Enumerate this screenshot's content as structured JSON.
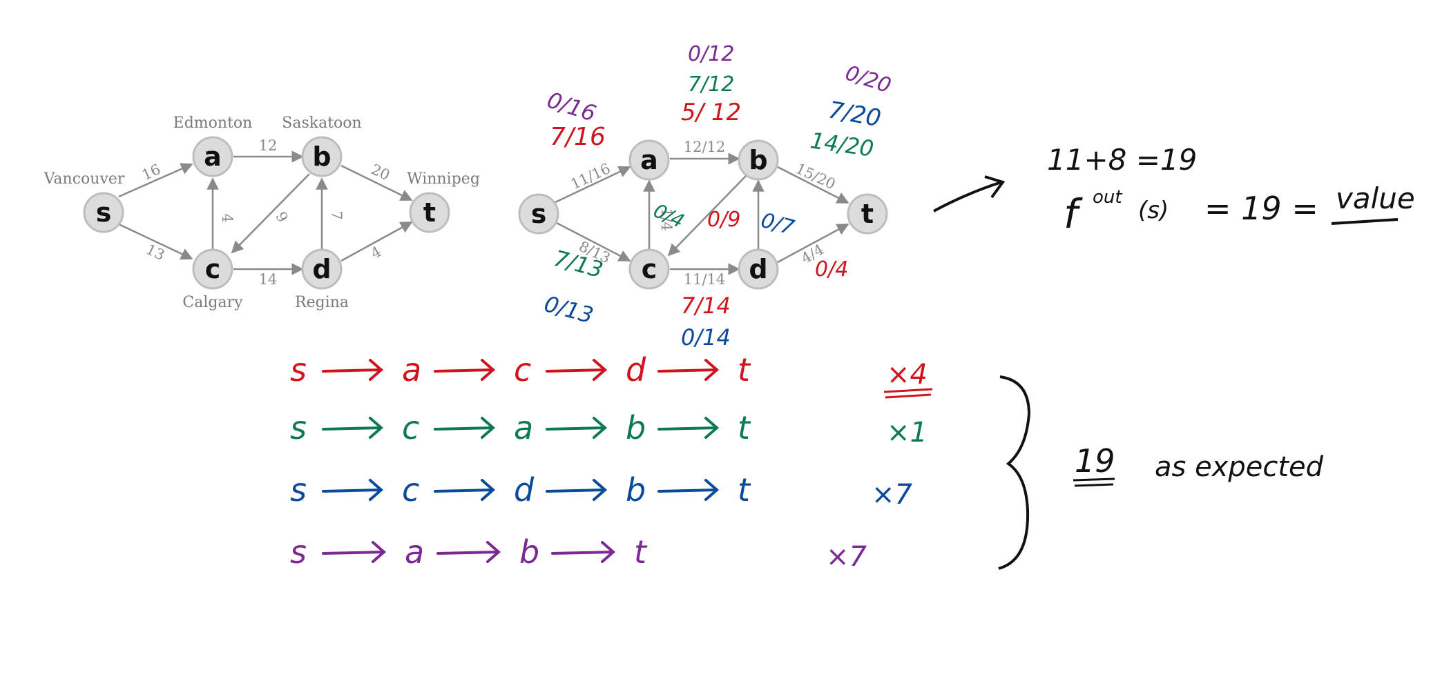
{
  "graph_left": {
    "nodes": [
      {
        "id": "s",
        "label": "s",
        "city": "Vancouver"
      },
      {
        "id": "a",
        "label": "a",
        "city": "Edmonton"
      },
      {
        "id": "b",
        "label": "b",
        "city": "Saskatoon"
      },
      {
        "id": "c",
        "label": "c",
        "city": "Calgary"
      },
      {
        "id": "d",
        "label": "d",
        "city": "Regina"
      },
      {
        "id": "t",
        "label": "t",
        "city": "Winnipeg"
      }
    ],
    "edges": [
      {
        "from": "s",
        "to": "a",
        "cap": "16"
      },
      {
        "from": "s",
        "to": "c",
        "cap": "13"
      },
      {
        "from": "a",
        "to": "b",
        "cap": "12"
      },
      {
        "from": "c",
        "to": "a",
        "cap": "4"
      },
      {
        "from": "b",
        "to": "c",
        "cap": "9"
      },
      {
        "from": "c",
        "to": "d",
        "cap": "14"
      },
      {
        "from": "d",
        "to": "b",
        "cap": "7"
      },
      {
        "from": "b",
        "to": "t",
        "cap": "20"
      },
      {
        "from": "d",
        "to": "t",
        "cap": "4"
      }
    ]
  },
  "graph_right": {
    "nodes": [
      {
        "id": "s",
        "label": "s"
      },
      {
        "id": "a",
        "label": "a"
      },
      {
        "id": "b",
        "label": "b"
      },
      {
        "id": "c",
        "label": "c"
      },
      {
        "id": "d",
        "label": "d"
      },
      {
        "id": "t",
        "label": "t"
      }
    ],
    "edge_flows": [
      {
        "from": "s",
        "to": "a",
        "flow": "11/16"
      },
      {
        "from": "s",
        "to": "c",
        "flow": "8/13"
      },
      {
        "from": "a",
        "to": "b",
        "flow": "12/12"
      },
      {
        "from": "c",
        "to": "a",
        "flow": "1/4"
      },
      {
        "from": "c",
        "to": "d",
        "flow": "11/14"
      },
      {
        "from": "b",
        "to": "t",
        "flow": "15/20"
      },
      {
        "from": "d",
        "to": "t",
        "flow": "4/4"
      }
    ],
    "annotations": {
      "sa_purple": "0/16",
      "sa_red": "7/16",
      "ab_purple": "0/12",
      "ab_green": "7/12",
      "ab_red": "5/ 12",
      "bt_purple": "0/20",
      "bt_blue": "7/20",
      "bt_green": "14/20",
      "ca_green": "0/4",
      "bc_red": "0/9",
      "db_blue": "0/7",
      "dt_red": "0/4",
      "sc_green": "7/13",
      "sc_blue": "0/13",
      "cd_red": "7/14",
      "cd_blue": "0/14"
    }
  },
  "notes": {
    "sum": "11+8 =19",
    "f_symbol": "f",
    "f_sup": "out",
    "f_arg": "(s)",
    "f_eq": "= 19 =",
    "value_word": "value",
    "result_number": "19",
    "result_text": "as expected"
  },
  "paths": [
    {
      "color": "red",
      "nodes": [
        "s",
        "a",
        "c",
        "d",
        "t"
      ],
      "mult": "×4"
    },
    {
      "color": "green",
      "nodes": [
        "s",
        "c",
        "a",
        "b",
        "t"
      ],
      "mult": "×1"
    },
    {
      "color": "blue",
      "nodes": [
        "s",
        "c",
        "d",
        "b",
        "t"
      ],
      "mult": "×7"
    },
    {
      "color": "purple",
      "nodes": [
        "s",
        "a",
        "b",
        "t"
      ],
      "mult": "×7"
    }
  ],
  "colors": {
    "red": "#d0141e",
    "green": "#0e7a54",
    "blue": "#0a4a9a",
    "purple": "#7a2a90",
    "black": "#111111",
    "node_fill": "#dcdcdc"
  }
}
